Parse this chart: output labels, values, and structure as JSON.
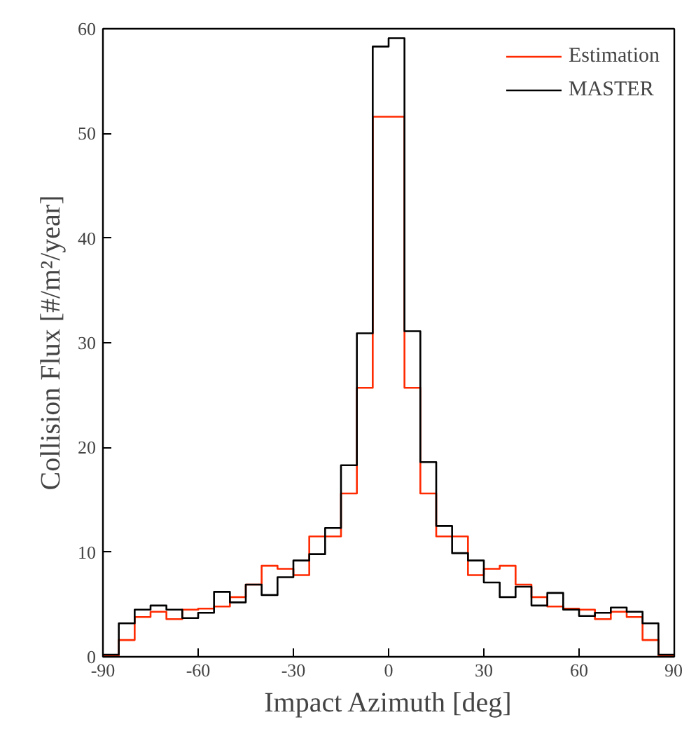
{
  "chart_data": {
    "type": "histogram",
    "xlabel": "Impact Azimuth [deg]",
    "ylabel": "Collision Flux [#/m²/year]",
    "bins": [
      -90,
      -85,
      -80,
      -75,
      -70,
      -65,
      -60,
      -55,
      -50,
      -45,
      -40,
      -35,
      -30,
      -25,
      -20,
      -15,
      -10,
      -5,
      0,
      5,
      10,
      15,
      20,
      25,
      30,
      35,
      40,
      45,
      50,
      55,
      60,
      65,
      70,
      75,
      80,
      85,
      90
    ],
    "series": [
      {
        "name": "Estimation",
        "color": "#ff2a00",
        "values": [
          0.1,
          1.6,
          3.8,
          4.3,
          3.6,
          4.5,
          4.6,
          4.8,
          5.7,
          6.9,
          8.7,
          8.4,
          7.8,
          11.5,
          11.5,
          15.6,
          25.7,
          51.6,
          51.6,
          25.7,
          15.6,
          11.5,
          11.5,
          7.8,
          8.4,
          8.7,
          6.9,
          5.7,
          4.8,
          4.6,
          4.5,
          3.6,
          4.3,
          3.8,
          1.6,
          0.1
        ]
      },
      {
        "name": "MASTER",
        "color": "#000000",
        "values": [
          0.2,
          3.2,
          4.5,
          4.9,
          4.5,
          3.7,
          4.2,
          6.2,
          5.2,
          6.9,
          5.9,
          7.6,
          9.2,
          9.8,
          12.3,
          18.3,
          30.9,
          58.3,
          59.1,
          31.1,
          18.6,
          12.5,
          9.9,
          9.2,
          7.1,
          5.7,
          6.7,
          4.9,
          6.1,
          4.5,
          3.9,
          4.2,
          4.7,
          4.3,
          3.2,
          0.2
        ]
      }
    ],
    "xlim": [
      -90,
      90
    ],
    "ylim": [
      0,
      60
    ],
    "xticks": [
      -90,
      -60,
      -30,
      0,
      30,
      60,
      90
    ],
    "yticks": [
      0,
      10,
      20,
      30,
      40,
      50,
      60
    ],
    "grid": false,
    "legend": "top right"
  }
}
